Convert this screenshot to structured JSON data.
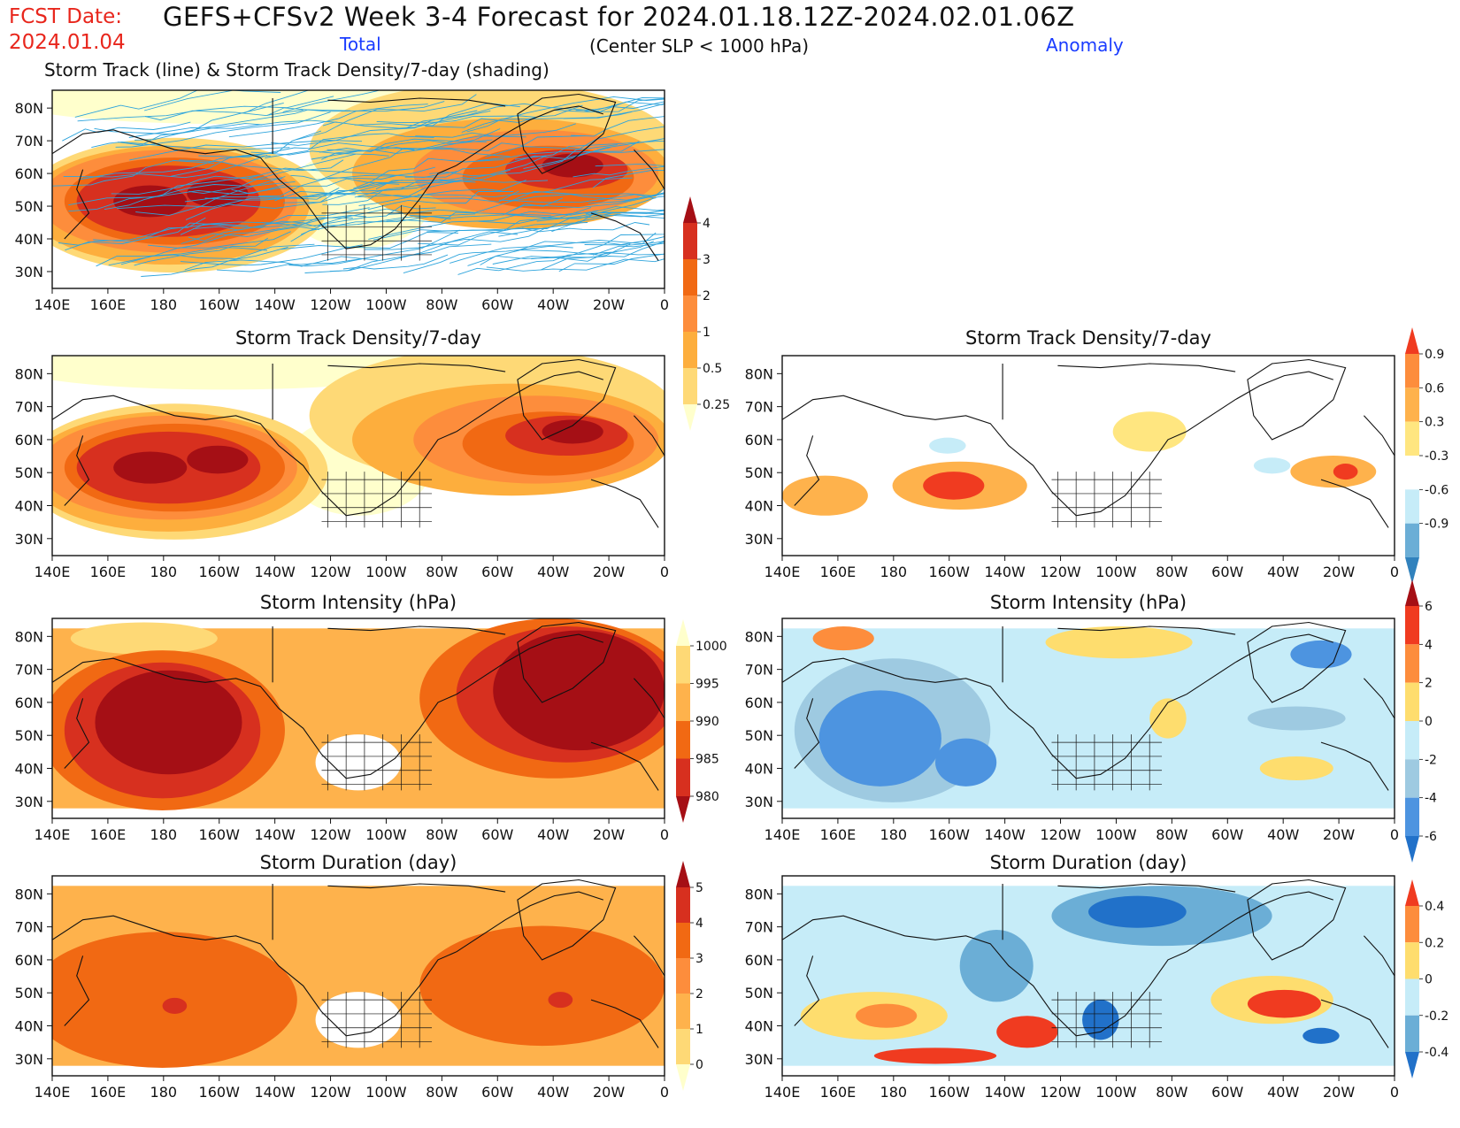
{
  "header": {
    "fcst_label": "FCST Date:",
    "fcst_date": "2024.01.04",
    "main_title": "GEFS+CFSv2 Week 3-4 Forecast for 2024.01.18.12Z-2024.02.01.06Z",
    "subtitle": "(Center SLP < 1000 hPa)",
    "col_total": "Total",
    "col_anomaly": "Anomaly",
    "top_panel_title": "Storm Track (line) & Storm Track Density/7-day (shading)"
  },
  "colors": {
    "red_text": "#e8261c",
    "blue_text": "#1a3cff",
    "track_line": "#2ea4dc"
  },
  "map": {
    "lat_labels": [
      "80N",
      "70N",
      "60N",
      "50N",
      "40N",
      "30N"
    ],
    "lon_labels": [
      "140E",
      "160E",
      "180",
      "160W",
      "140W",
      "120W",
      "100W",
      "80W",
      "60W",
      "40W",
      "20W",
      "0"
    ]
  },
  "panels": [
    {
      "id": "track",
      "title": "",
      "colorbar": "density_total",
      "tracks": true
    },
    {
      "id": "density-total",
      "title": "Storm Track Density/7-day",
      "colorbar": null
    },
    {
      "id": "density-anom",
      "title": "Storm Track Density/7-day",
      "colorbar": "density_anom"
    },
    {
      "id": "intensity-total",
      "title": "Storm Intensity (hPa)",
      "colorbar": "intensity_total"
    },
    {
      "id": "intensity-anom",
      "title": "Storm Intensity (hPa)",
      "colorbar": "intensity_anom"
    },
    {
      "id": "duration-total",
      "title": "Storm Duration (day)",
      "colorbar": "duration_total"
    },
    {
      "id": "duration-anom",
      "title": "Storm Duration (day)",
      "colorbar": "duration_anom"
    }
  ],
  "colorbars": {
    "density_total": {
      "labels": [
        "4",
        "3",
        "2",
        "1",
        "0.5",
        "0.25"
      ],
      "colors": [
        "#a50f15",
        "#d7301f",
        "#f16913",
        "#fd8d3c",
        "#fdae3d",
        "#fed976",
        "#ffffcc"
      ]
    },
    "density_anom": {
      "labels": [
        "0.9",
        "0.6",
        "0.3",
        "-0.3",
        "-0.6",
        "-0.9"
      ],
      "colors": [
        "#f03b20",
        "#fd8d3c",
        "#feb24c",
        "#ffe680",
        "#ffffff",
        "#c6ecf8",
        "#6baed6",
        "#3182bd"
      ]
    },
    "intensity_total": {
      "labels": [
        "1000",
        "995",
        "990",
        "985",
        "980"
      ],
      "colors": [
        "#ffffcc",
        "#fed976",
        "#feb24c",
        "#f16913",
        "#d7301f",
        "#a50f15"
      ]
    },
    "intensity_anom": {
      "labels": [
        "6",
        "4",
        "2",
        "0",
        "-2",
        "-4",
        "-6"
      ],
      "colors": [
        "#a50f15",
        "#f03b20",
        "#fd8d3c",
        "#fedd6e",
        "#c6ecf8",
        "#9ecae1",
        "#4d94e0",
        "#2171c9"
      ]
    },
    "duration_total": {
      "labels": [
        "5",
        "4",
        "3",
        "2",
        "1",
        "0"
      ],
      "colors": [
        "#a50f15",
        "#d7301f",
        "#f16913",
        "#fd8d3c",
        "#feb24c",
        "#fed976",
        "#ffffcc"
      ]
    },
    "duration_anom": {
      "labels": [
        "0.4",
        "0.2",
        "0",
        "-0.2",
        "-0.4"
      ],
      "colors": [
        "#f03b20",
        "#fd8d3c",
        "#fedd6e",
        "#c6ecf8",
        "#6baed6",
        "#2171c9"
      ]
    }
  }
}
